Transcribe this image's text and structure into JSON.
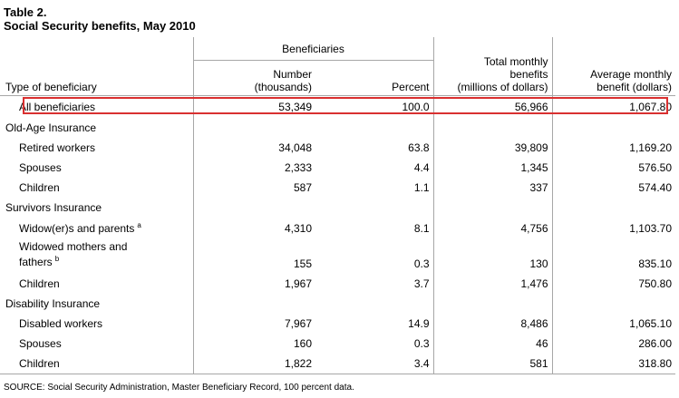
{
  "title": {
    "line1": "Table 2.",
    "line2": "Social Security benefits, May 2010"
  },
  "headers": {
    "type": "Type of beneficiary",
    "group": "Beneficiaries",
    "number": [
      "Number",
      "(thousands)"
    ],
    "percent": "Percent",
    "total": [
      "Total monthly",
      "benefits",
      "(millions of dollars)"
    ],
    "average": [
      "Average monthly",
      "benefit (dollars)"
    ]
  },
  "rows": {
    "all": {
      "label": "All beneficiaries",
      "number": "53,349",
      "percent": "100.0",
      "total": "56,966",
      "average": "1,067.80"
    },
    "oai": {
      "label": "Old-Age Insurance"
    },
    "oai_retired": {
      "label": "Retired workers",
      "number": "34,048",
      "percent": "63.8",
      "total": "39,809",
      "average": "1,169.20"
    },
    "oai_spouses": {
      "label": "Spouses",
      "number": "2,333",
      "percent": "4.4",
      "total": "1,345",
      "average": "576.50"
    },
    "oai_children": {
      "label": "Children",
      "number": "587",
      "percent": "1.1",
      "total": "337",
      "average": "574.40"
    },
    "si": {
      "label": "Survivors Insurance"
    },
    "si_widow": {
      "label": "Widow(er)s and parents",
      "note": "a",
      "number": "4,310",
      "percent": "8.1",
      "total": "4,756",
      "average": "1,103.70"
    },
    "si_widowed": {
      "label_line1": "Widowed mothers and",
      "label_line2": "fathers",
      "note": "b",
      "number": "155",
      "percent": "0.3",
      "total": "130",
      "average": "835.10"
    },
    "si_children": {
      "label": "Children",
      "number": "1,967",
      "percent": "3.7",
      "total": "1,476",
      "average": "750.80"
    },
    "di": {
      "label": "Disability Insurance"
    },
    "di_disabled": {
      "label": "Disabled workers",
      "number": "7,967",
      "percent": "14.9",
      "total": "8,486",
      "average": "1,065.10"
    },
    "di_spouses": {
      "label": "Spouses",
      "number": "160",
      "percent": "0.3",
      "total": "46",
      "average": "286.00"
    },
    "di_children": {
      "label": "Children",
      "number": "1,822",
      "percent": "3.4",
      "total": "581",
      "average": "318.80"
    }
  },
  "source": "SOURCE: Social Security Administration, Master Beneficiary Record, 100 percent data.",
  "colors": {
    "highlight": "#d93030",
    "rule": "#a7a7a7"
  }
}
